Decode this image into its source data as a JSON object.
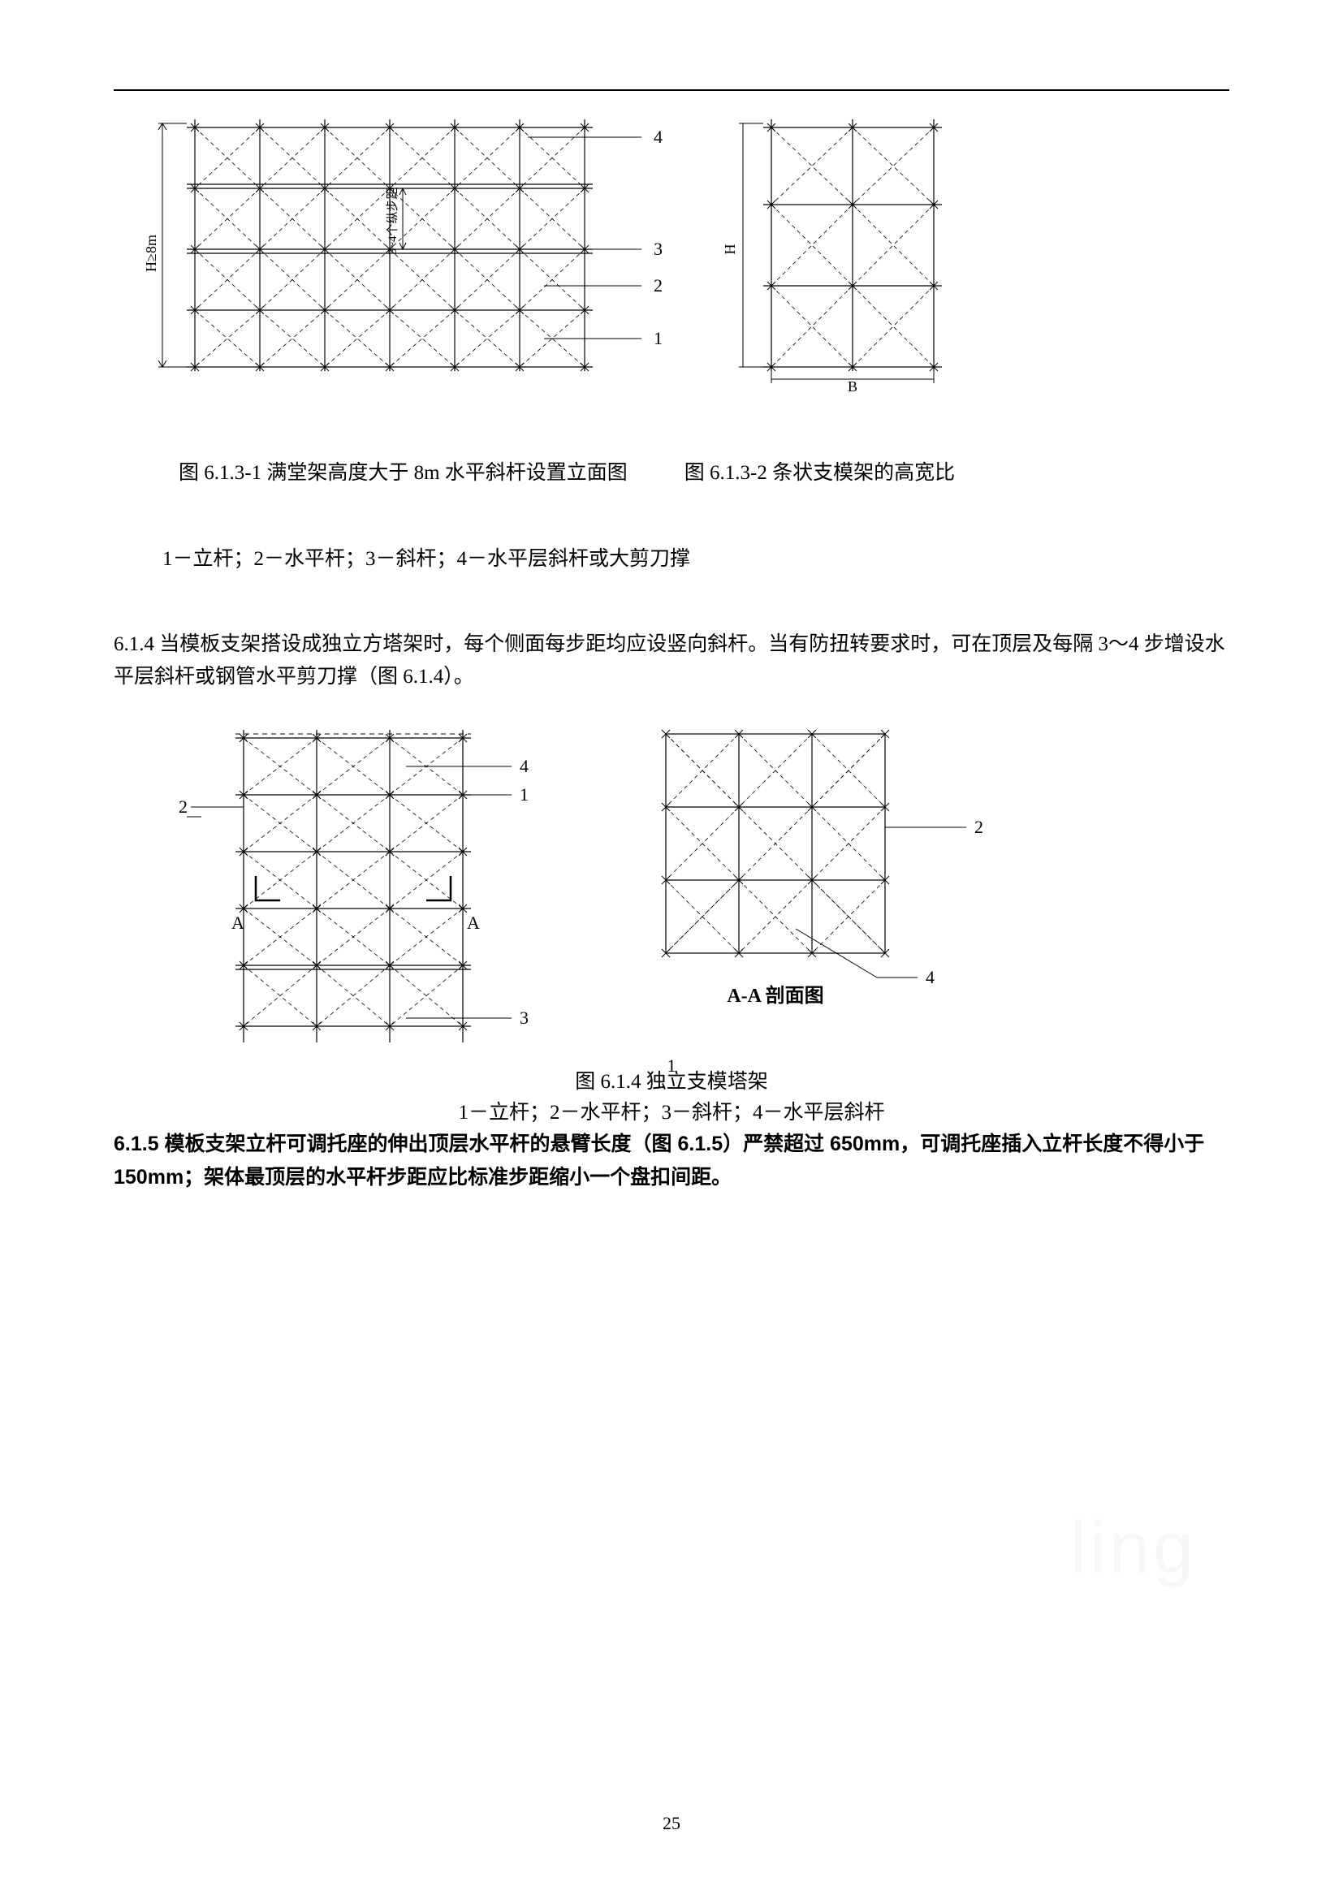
{
  "figure1": {
    "caption": "图 6.1.3-1 满堂架高度大于 8m 水平斜杆设置立面图",
    "leftLabel": "H≥8m",
    "midLabel": "3~4个纵步距",
    "callouts": [
      "4",
      "3",
      "2",
      "1"
    ],
    "stroke": "#000000",
    "diagStroke": "#000000",
    "thinDash": "4,3"
  },
  "figure2": {
    "caption": "图 6.1.3-2 条状支模架的高宽比",
    "leftLabel": "H",
    "bottomLabel": "B",
    "stroke": "#000000"
  },
  "legend1": "1－立杆；2－水平杆；3－斜杆；4－水平层斜杆或大剪刀撑",
  "para614": "6.1.4  当模板支架搭设成独立方塔架时，每个侧面每步距均应设竖向斜杆。当有防扭转要求时，可在顶层及每隔 3～4 步增设水平层斜杆或钢管水平剪刀撑（图 6.1.4）。",
  "figure3": {
    "caption": "图 6.1.4 独立支模塔架",
    "legend": "1－立杆；2－水平杆；3－斜杆；4－水平层斜杆",
    "callouts": {
      "topRight4": "4",
      "topRight1": "1",
      "left2": "2",
      "Aleft": "A",
      "Aright": "A",
      "bottom3": "3"
    },
    "stroke": "#000000"
  },
  "figure4": {
    "title": "A-A 剖面图",
    "callouts": {
      "right2": "2",
      "bottom4": "4"
    },
    "stroke": "#000000"
  },
  "para615": {
    "prefix": "6.1.5  模板支架立杆可调托座的伸出顶层水平杆的悬臂长度（图 6.1.5）严禁超过 650mm，可调托座插入立杆长度不得小于 150mm；架体最顶层的水平杆步距应比标准步距缩小一个盘扣间距。"
  },
  "innerPageNum": "1",
  "outerPageNum": "25",
  "watermark": "ling"
}
